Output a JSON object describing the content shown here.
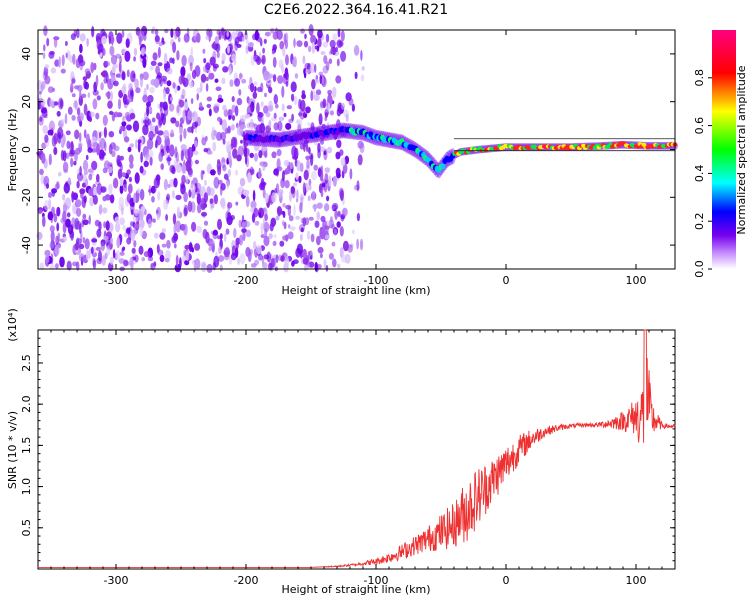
{
  "title": "C2E6.2022.364.16.41.R21",
  "chart_data": [
    {
      "type": "heatmap",
      "xlabel": "Height of straight line (km)",
      "ylabel": "Frequency (Hz)",
      "xlim": [
        -360,
        130
      ],
      "ylim": [
        -50,
        50
      ],
      "x_ticks": [
        -300,
        -200,
        -100,
        0,
        100
      ],
      "y_ticks": [
        -40,
        -20,
        0,
        20,
        40
      ],
      "noise_region_x": [
        -360,
        -125
      ],
      "ridge": [
        {
          "x": -200,
          "y": 5
        },
        {
          "x": -175,
          "y": 4
        },
        {
          "x": -150,
          "y": 6
        },
        {
          "x": -125,
          "y": 8
        },
        {
          "x": -110,
          "y": 7
        },
        {
          "x": -100,
          "y": 5
        },
        {
          "x": -90,
          "y": 4
        },
        {
          "x": -80,
          "y": 3
        },
        {
          "x": -70,
          "y": 0
        },
        {
          "x": -60,
          "y": -4
        },
        {
          "x": -52,
          "y": -9
        },
        {
          "x": -45,
          "y": -4
        },
        {
          "x": -35,
          "y": -1
        },
        {
          "x": -20,
          "y": 0
        },
        {
          "x": 0,
          "y": 1
        },
        {
          "x": 25,
          "y": 1
        },
        {
          "x": 50,
          "y": 1
        },
        {
          "x": 75,
          "y": 1.5
        },
        {
          "x": 90,
          "y": 2
        },
        {
          "x": 110,
          "y": 1.5
        },
        {
          "x": 130,
          "y": 1.5
        }
      ],
      "colorbar": {
        "label": "Normalized spectral amplitude",
        "range": [
          0,
          1
        ],
        "ticks": [
          "0.0",
          "0.2",
          "0.4",
          "0.6",
          "0.8"
        ],
        "tick_values": [
          0,
          0.2,
          0.4,
          0.6,
          0.8
        ]
      }
    },
    {
      "type": "line",
      "xlabel": "Height of straight line (km)",
      "ylabel": "SNR (10 * v/v)",
      "y_multiplier": "(x10⁴)",
      "xlim": [
        -360,
        130
      ],
      "ylim": [
        0,
        2.9
      ],
      "x_ticks": [
        -300,
        -200,
        -100,
        0,
        100
      ],
      "y_ticks": [
        "0.5",
        "1.0",
        "1.5",
        "2.0",
        "2.5"
      ],
      "y_tick_values": [
        0.5,
        1.0,
        1.5,
        2.0,
        2.5
      ],
      "series": [
        {
          "color": "#ee3030",
          "x": [
            -360,
            -300,
            -250,
            -200,
            -150,
            -130,
            -115,
            -100,
            -90,
            -80,
            -70,
            -60,
            -50,
            -40,
            -30,
            -20,
            -10,
            0,
            10,
            20,
            30,
            40,
            50,
            60,
            70,
            80,
            90,
            100,
            105,
            108,
            112,
            120,
            130
          ],
          "y": [
            0.02,
            0.02,
            0.02,
            0.02,
            0.02,
            0.03,
            0.05,
            0.08,
            0.12,
            0.18,
            0.25,
            0.32,
            0.38,
            0.45,
            0.6,
            0.8,
            1.0,
            1.2,
            1.4,
            1.55,
            1.65,
            1.7,
            1.73,
            1.74,
            1.74,
            1.75,
            1.76,
            1.78,
            1.7,
            1.85,
            1.76,
            1.73,
            1.72
          ],
          "noise": [
            0,
            0,
            0,
            0,
            0,
            0.01,
            0.02,
            0.05,
            0.08,
            0.12,
            0.15,
            0.2,
            0.28,
            0.35,
            0.5,
            0.45,
            0.35,
            0.3,
            0.22,
            0.15,
            0.08,
            0.05,
            0.03,
            0.03,
            0.03,
            0.08,
            0.15,
            0.3,
            0.6,
            0.9,
            0.3,
            0.04,
            0.03
          ]
        }
      ]
    }
  ]
}
